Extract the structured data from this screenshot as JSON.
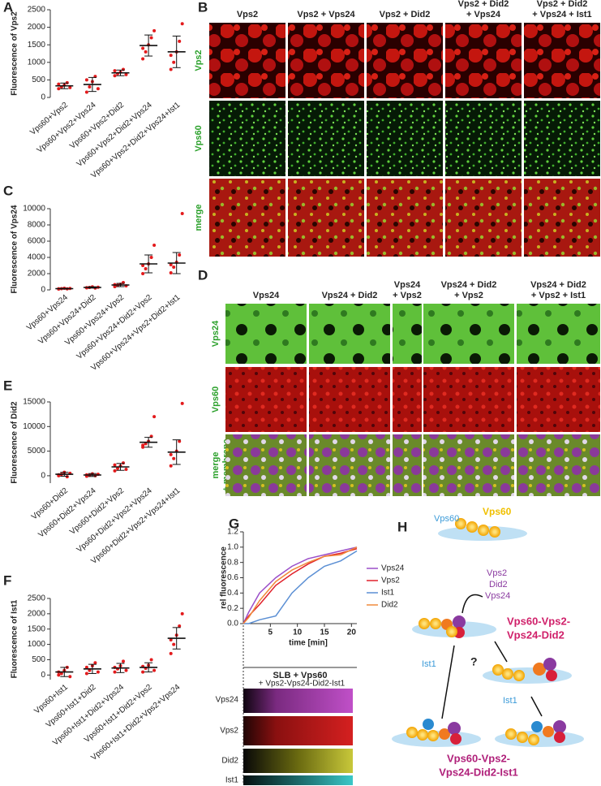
{
  "chart_data": [
    {
      "type": "dotplot",
      "panel": "A",
      "ylabel": "Fluorescence of Vps2",
      "categories": [
        "Vps60+Vps2",
        "Vps60+Vps2+Vps24",
        "Vps60+Vps2+Did2",
        "Vps60+Vps2+Did2+Vps24",
        "Vps60+Vps2+Did2+Vps24+Ist1"
      ],
      "values": [
        330,
        370,
        700,
        1480,
        1300
      ],
      "errors": [
        80,
        200,
        80,
        300,
        450
      ],
      "points": [
        [
          250,
          300,
          350,
          420,
          280,
          380
        ],
        [
          150,
          300,
          450,
          600,
          250,
          500
        ],
        [
          620,
          680,
          720,
          800,
          650,
          760
        ],
        [
          1100,
          1300,
          1500,
          1700,
          1900,
          1400
        ],
        [
          800,
          1000,
          1300,
          1600,
          2100,
          1200
        ]
      ],
      "ylim": [
        0,
        2500
      ],
      "yticks": [
        0,
        500,
        1000,
        1500,
        2000,
        2500
      ],
      "color": "#e31a1c"
    },
    {
      "type": "dotplot",
      "panel": "C",
      "ylabel": "Fluorescence of Vps24",
      "categories": [
        "Vps60+Vps24",
        "Vps60+Vps24+Did2",
        "Vps60+Vps24+Vps2",
        "Vps60+Vps24+Did2+Vps2",
        "Vps60+Vps24+Vps2+Did2+Ist1"
      ],
      "values": [
        150,
        300,
        600,
        3200,
        3300
      ],
      "errors": [
        50,
        80,
        200,
        1100,
        1300
      ],
      "points": [
        [
          100,
          150,
          200,
          120,
          180,
          140
        ],
        [
          250,
          300,
          380,
          220,
          330,
          280
        ],
        [
          400,
          550,
          700,
          900,
          500,
          650
        ],
        [
          2000,
          2600,
          3200,
          4000,
          5500,
          3000
        ],
        [
          2100,
          2800,
          3400,
          4300,
          9400,
          3100
        ]
      ],
      "ylim": [
        0,
        10000
      ],
      "yticks": [
        0,
        2000,
        4000,
        6000,
        8000,
        10000
      ],
      "color": "#e31a1c"
    },
    {
      "type": "dotplot",
      "panel": "E",
      "ylabel": "Fluorescence of Did2",
      "categories": [
        "Vps60+Did2",
        "Vps60+Did2+Vps24",
        "Vps60+Did2+Vps2",
        "Vps60+Did2+Vps2+Vps24",
        "Vps60+Did2+Vps2+Vps24+Ist1"
      ],
      "values": [
        300,
        150,
        1800,
        6800,
        4800
      ],
      "errors": [
        400,
        300,
        700,
        1000,
        2500
      ],
      "points": [
        [
          0,
          300,
          700,
          -200,
          500,
          200
        ],
        [
          -100,
          100,
          400,
          0,
          300,
          200
        ],
        [
          1000,
          1500,
          2000,
          2600,
          1300,
          2200
        ],
        [
          5800,
          6500,
          7000,
          8000,
          12000,
          6200
        ],
        [
          2000,
          3500,
          5000,
          7000,
          14700,
          4300
        ]
      ],
      "ylim": [
        -1500,
        15000
      ],
      "yticks": [
        0,
        5000,
        10000,
        15000
      ],
      "color": "#e31a1c"
    },
    {
      "type": "dotplot",
      "panel": "F",
      "ylabel": "Fluorescence of Ist1",
      "categories": [
        "Vps60+Ist1",
        "Vps60+Ist1+Did2",
        "Vps60+Ist1+Did2+Vps24",
        "Vps60+Ist1+Did2+Vps2",
        "Vps60+Ist1+Did2+Vps2+Vps24"
      ],
      "values": [
        100,
        200,
        230,
        250,
        1200
      ],
      "errors": [
        150,
        150,
        150,
        150,
        350
      ],
      "points": [
        [
          0,
          50,
          150,
          250,
          -50,
          100
        ],
        [
          50,
          150,
          300,
          400,
          100,
          250
        ],
        [
          100,
          200,
          300,
          450,
          150,
          250
        ],
        [
          100,
          220,
          320,
          500,
          150,
          280
        ],
        [
          700,
          1000,
          1300,
          1600,
          2000,
          1150
        ]
      ],
      "ylim": [
        -150,
        2500
      ],
      "yticks": [
        0,
        500,
        1000,
        1500,
        2000,
        2500
      ],
      "color": "#e31a1c"
    },
    {
      "type": "line",
      "panel": "G",
      "xlabel": "time [min]",
      "ylabel": "rel fluorescence",
      "x": [
        0,
        1,
        3,
        6,
        9,
        12,
        15,
        18,
        21
      ],
      "series": [
        {
          "name": "Vps24",
          "color": "#9b4fc9",
          "values": [
            0,
            0.15,
            0.4,
            0.6,
            0.75,
            0.85,
            0.9,
            0.95,
            1.0
          ]
        },
        {
          "name": "Vps2",
          "color": "#e0202a",
          "values": [
            0,
            0.1,
            0.25,
            0.5,
            0.65,
            0.78,
            0.88,
            0.92,
            0.98
          ]
        },
        {
          "name": "Ist1",
          "color": "#5b8fd4",
          "values": [
            0,
            0,
            0.05,
            0.1,
            0.4,
            0.6,
            0.75,
            0.82,
            0.95
          ]
        },
        {
          "name": "Did2",
          "color": "#f08a3c",
          "values": [
            0,
            0.08,
            0.3,
            0.55,
            0.7,
            0.8,
            0.88,
            0.9,
            1.0
          ]
        }
      ],
      "xlim": [
        0,
        21
      ],
      "xticks": [
        5,
        10,
        15,
        20
      ],
      "ylim": [
        0,
        1.2
      ],
      "yticks": [
        {
          "value": 0,
          "label": "0.0"
        },
        0.2,
        0.4,
        0.6,
        0.8,
        {
          "value": 1,
          "label": "1.0"
        },
        1.2
      ]
    }
  ],
  "panel_b": {
    "panel": "B",
    "columns": [
      [
        "Vps2"
      ],
      [
        "Vps2 + Vps24"
      ],
      [
        "Vps2 + Did2"
      ],
      [
        "Vps2 + Did2",
        "+ Vps24"
      ],
      [
        "Vps2 + Did2",
        "+ Vps24 + Ist1"
      ]
    ],
    "rows": [
      [
        "Vps2"
      ],
      [
        "Vps60"
      ],
      [
        "merge"
      ]
    ]
  },
  "panel_d": {
    "panel": "D",
    "columns": [
      [
        "Vps24"
      ],
      [
        "Vps24 + Did2"
      ],
      [
        "Vps24",
        "+ Vps2"
      ],
      [
        "Vps24 + Did2",
        "+ Vps2"
      ],
      [
        "Vps24 + Did2",
        "+ Vps2 + Ist1"
      ]
    ],
    "rows": [
      [
        "Vps24"
      ],
      [
        "Vps60"
      ],
      [
        "merge",
        "+ membrane"
      ]
    ]
  },
  "kymograph": {
    "title": "SLB + Vps60",
    "subtitle": "+ Vps2-Vps24-Did2-Ist1",
    "rows": [
      "Vps24",
      "Vps2",
      "Did2",
      "Ist1"
    ]
  },
  "panel_h": {
    "panel": "H",
    "vps60_blue": "Vps60",
    "vps60_yellow": "Vps60",
    "added": [
      "Vps2",
      "Did2",
      "Vps24"
    ],
    "complex1": [
      "Vps60-Vps2-",
      "Vps24-Did2"
    ],
    "ist1_left": "Ist1",
    "question": "?",
    "ist1_right": "Ist1",
    "complex2": [
      "Vps60-Vps2-",
      "Vps24-Did2-Ist1"
    ]
  }
}
